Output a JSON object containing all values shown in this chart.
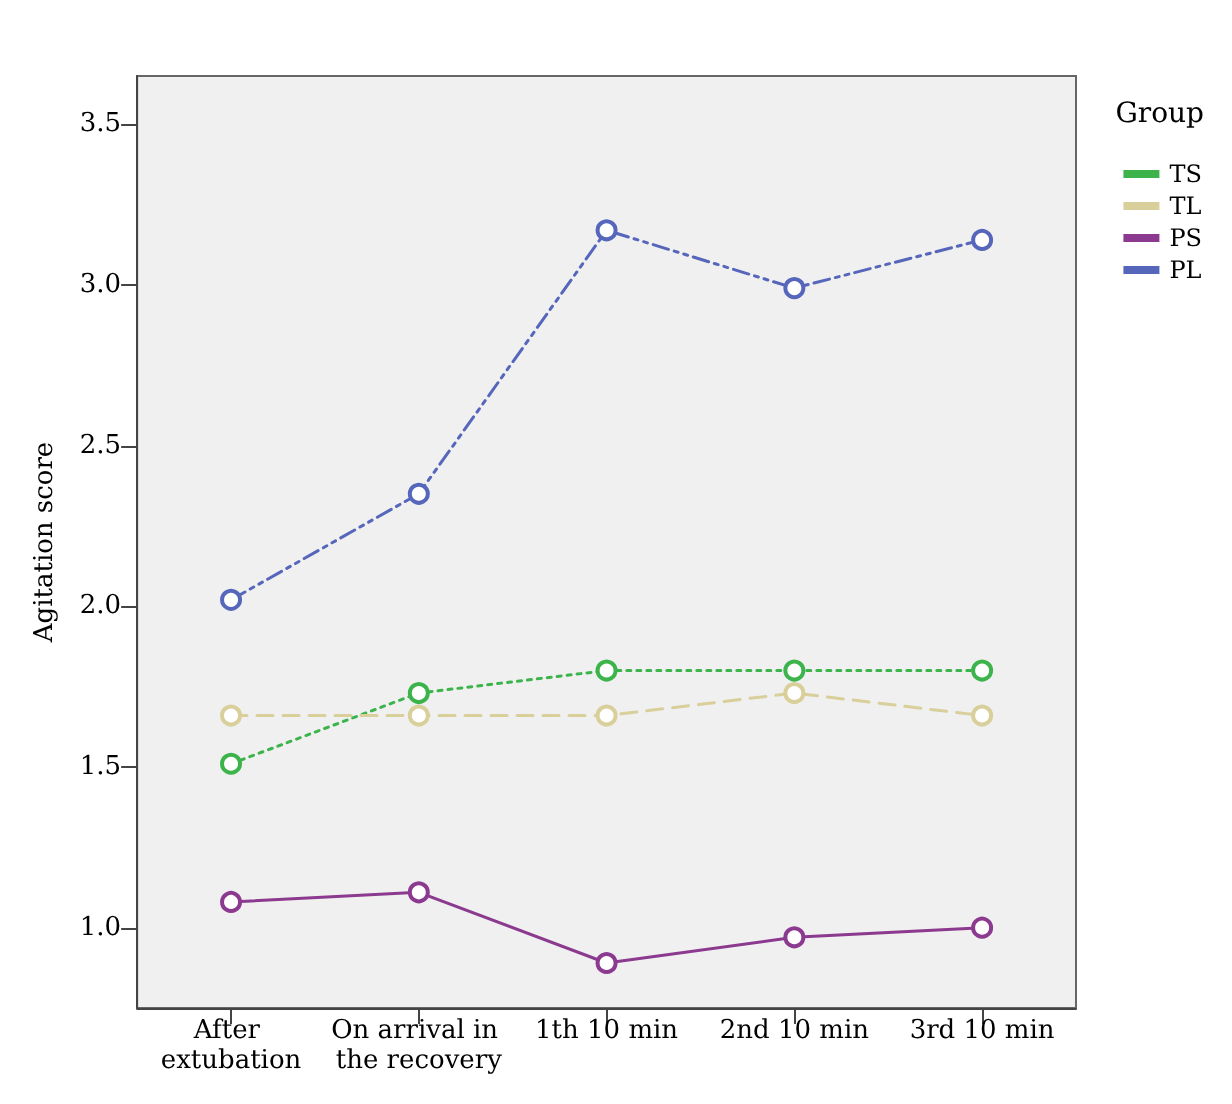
{
  "chart_data": {
    "type": "line",
    "ylabel": "Agitation score",
    "legend_title": "Group",
    "categories": [
      "After extubation",
      "On arrival in the recovery",
      "1th 10 min",
      "2nd 10 min",
      "3rd 10 min"
    ],
    "series": [
      {
        "name": "TS",
        "color": "#3cb44b",
        "line_style": "dotted",
        "values": [
          1.51,
          1.73,
          1.8,
          1.8,
          1.8
        ]
      },
      {
        "name": "TL",
        "color": "#d8cf9a",
        "line_style": "dashed",
        "values": [
          1.66,
          1.66,
          1.66,
          1.73,
          1.66
        ]
      },
      {
        "name": "PS",
        "color": "#8b3a8f",
        "line_style": "solid",
        "values": [
          1.08,
          1.11,
          0.89,
          0.97,
          1.0
        ]
      },
      {
        "name": "PL",
        "color": "#5566bb",
        "line_style": "dashdot",
        "values": [
          2.02,
          2.35,
          3.17,
          2.99,
          3.14
        ]
      }
    ],
    "ylim": [
      0.75,
      3.65
    ],
    "yticks": [
      {
        "value": 1,
        "label": "1.0"
      },
      1.5,
      {
        "value": 2,
        "label": "2.0"
      },
      2.5,
      {
        "value": 3,
        "label": "3.0"
      },
      3.5
    ],
    "grid": false,
    "legend": "top right",
    "marker": "circle"
  }
}
